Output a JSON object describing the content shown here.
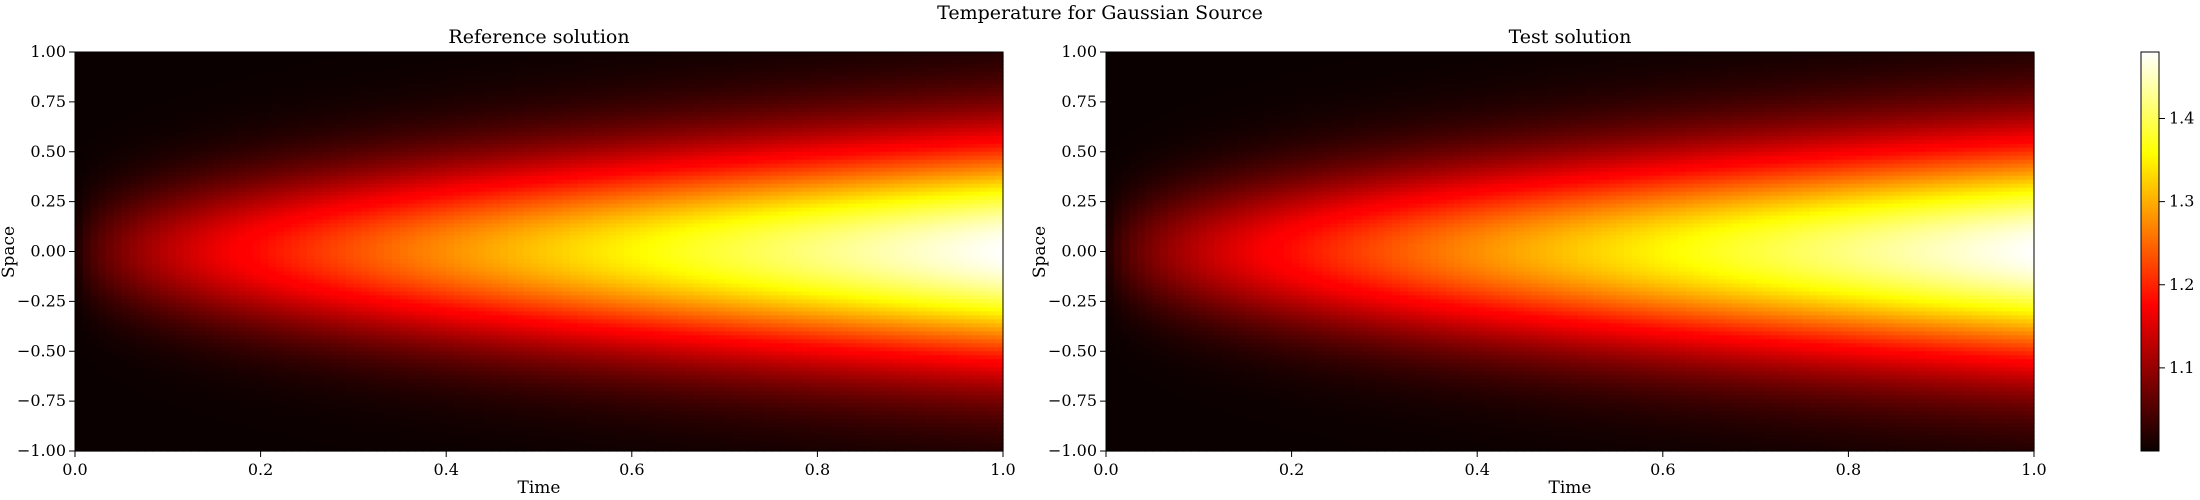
{
  "figure": {
    "suptitle": "Temperature for Gaussian Source"
  },
  "chart_data": [
    {
      "type": "heatmap",
      "title": "Reference solution",
      "xlabel": "Time",
      "ylabel": "Space",
      "xlim": [
        0.0,
        1.0
      ],
      "ylim": [
        -1.0,
        1.0
      ],
      "xticks": [
        "0.0",
        "0.2",
        "0.4",
        "0.6",
        "0.8",
        "1.0"
      ],
      "yticks": [
        "-1.00",
        "-0.75",
        "-0.50",
        "-0.25",
        "0.00",
        "0.25",
        "0.50",
        "0.75",
        "1.00"
      ],
      "colormap": "hot",
      "field": {
        "description_of_values": "temperature",
        "t0_value": 1.0,
        "peak_value": 1.48,
        "peak_location": {
          "time": 1.0,
          "space": 0.0
        }
      }
    },
    {
      "type": "heatmap",
      "title": "Test solution",
      "xlabel": "Time",
      "ylabel": "Space",
      "xlim": [
        0.0,
        1.0
      ],
      "ylim": [
        -1.0,
        1.0
      ],
      "xticks": [
        "0.0",
        "0.2",
        "0.4",
        "0.6",
        "0.8",
        "1.0"
      ],
      "yticks": [
        "-1.00",
        "-0.75",
        "-0.50",
        "-0.25",
        "0.00",
        "0.25",
        "0.50",
        "0.75",
        "1.00"
      ],
      "colormap": "hot",
      "field": {
        "description_of_values": "temperature",
        "t0_value": 1.0,
        "peak_value": 1.48,
        "peak_location": {
          "time": 1.0,
          "space": 0.0
        }
      }
    }
  ],
  "colorbar": {
    "range": [
      1.0,
      1.48
    ],
    "ticks": [
      "1.1",
      "1.2",
      "1.3",
      "1.4"
    ],
    "tick_values": [
      1.1,
      1.2,
      1.3,
      1.4
    ]
  }
}
